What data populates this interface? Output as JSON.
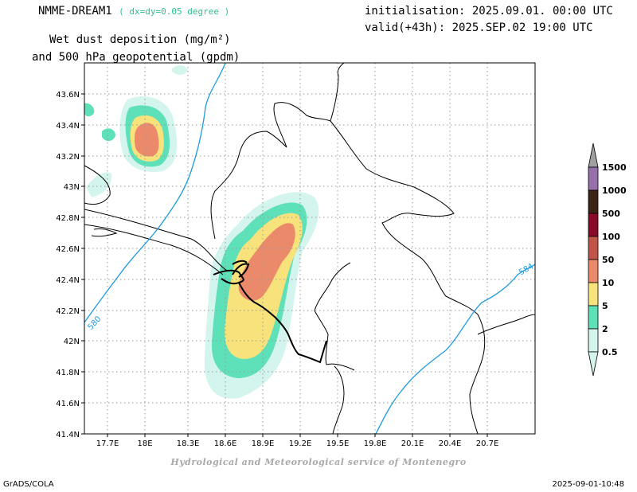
{
  "header": {
    "model": "NMME-DREAM1",
    "resolution": "( dx=dy=0.05 degree )",
    "init": "initialisation: 2025.09.01. 00:00 UTC",
    "valid": "valid(+43h): 2025.SEP.02 19:00 UTC",
    "title_line1": "Wet dust deposition (mg/m²)",
    "title_line2": "and 500 hPa geopotential (gpdm)"
  },
  "map": {
    "lat_labels": [
      "43.6N",
      "43.4N",
      "43.2N",
      "43N",
      "42.8N",
      "42.6N",
      "42.4N",
      "42.2N",
      "42N",
      "41.8N",
      "41.6N",
      "41.4N"
    ],
    "lon_labels": [
      "17.7E",
      "18E",
      "18.3E",
      "18.6E",
      "18.9E",
      "19.2E",
      "19.5E",
      "19.8E",
      "20.1E",
      "20.4E",
      "20.7E"
    ],
    "contour_labels": [
      "580",
      "584"
    ],
    "contour_color": "#1e9be0"
  },
  "legend": {
    "labels": [
      "0.5",
      "2",
      "5",
      "10",
      "50",
      "100",
      "500",
      "1000",
      "1500"
    ],
    "colors": {
      "c1": "#d4f4ee",
      "c2": "#5ee0b8",
      "c3": "#f8e27c",
      "c4": "#eb8a6a",
      "c5": "#c0564a",
      "c6": "#8a0a2a",
      "c7": "#3c2414",
      "c8": "#9670a8",
      "c9": "#a0a0a0"
    }
  },
  "footer": {
    "credit": "Hydrological and Meteorological service of Montenegro",
    "software": "GrADS/COLA",
    "timestamp": "2025-09-01-10:48"
  }
}
